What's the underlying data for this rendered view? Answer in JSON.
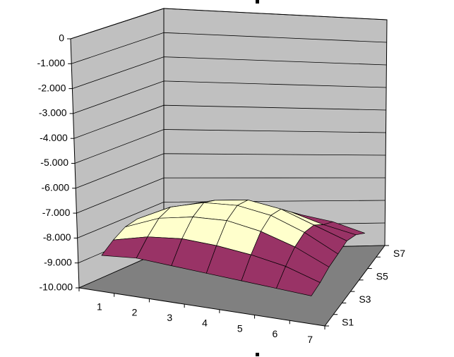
{
  "chart_data": {
    "type": "surface3d",
    "categories": [
      "1",
      "2",
      "3",
      "4",
      "5",
      "6",
      "7"
    ],
    "series": [
      {
        "name": "S1",
        "values": [
          -8700,
          -8600,
          -8700,
          -8800,
          -8900,
          -9000,
          -9100
        ]
      },
      {
        "name": null,
        "values": [
          -8300,
          -8000,
          -7900,
          -8000,
          -8200,
          -8500,
          -9000
        ]
      },
      {
        "name": "S3",
        "values": [
          -8000,
          -7500,
          -7300,
          -7300,
          -7600,
          -8100,
          -8800
        ]
      },
      {
        "name": null,
        "values": [
          -7900,
          -7300,
          -7000,
          -7000,
          -7300,
          -7900,
          -8700
        ]
      },
      {
        "name": "S5",
        "values": [
          -8100,
          -7500,
          -7200,
          -7100,
          -7400,
          -8000,
          -8600
        ]
      },
      {
        "name": null,
        "values": [
          -8500,
          -8000,
          -7700,
          -7600,
          -7900,
          -8400,
          -8800
        ]
      },
      {
        "name": "S7",
        "values": [
          -8900,
          -8600,
          -8300,
          -8200,
          -8400,
          -8700,
          -9200
        ]
      }
    ],
    "ylim": [
      -10000,
      0
    ],
    "yticks": [
      0,
      {
        "value": -1000,
        "label": "-1.000"
      },
      {
        "value": -2000,
        "label": "-2.000"
      },
      {
        "value": -3000,
        "label": "-3.000"
      },
      {
        "value": -4000,
        "label": "-4.000"
      },
      {
        "value": -5000,
        "label": "-5.000"
      },
      {
        "value": -6000,
        "label": "-6.000"
      },
      {
        "value": -7000,
        "label": "-7.000"
      },
      {
        "value": -8000,
        "label": "-8.000"
      },
      {
        "value": -9000,
        "label": "-9.000"
      },
      {
        "value": -10000,
        "label": "-10.000"
      }
    ],
    "band_colors": [
      "#9999ff",
      "#993366",
      "#ffffcc",
      "#ccffff",
      "#660066",
      "#ff8080",
      "#0066cc",
      "#ccccff",
      "#000080",
      "#ff00ff"
    ],
    "wall_color": "#c0c0c0",
    "floor_color": "#808080",
    "grid": true
  }
}
